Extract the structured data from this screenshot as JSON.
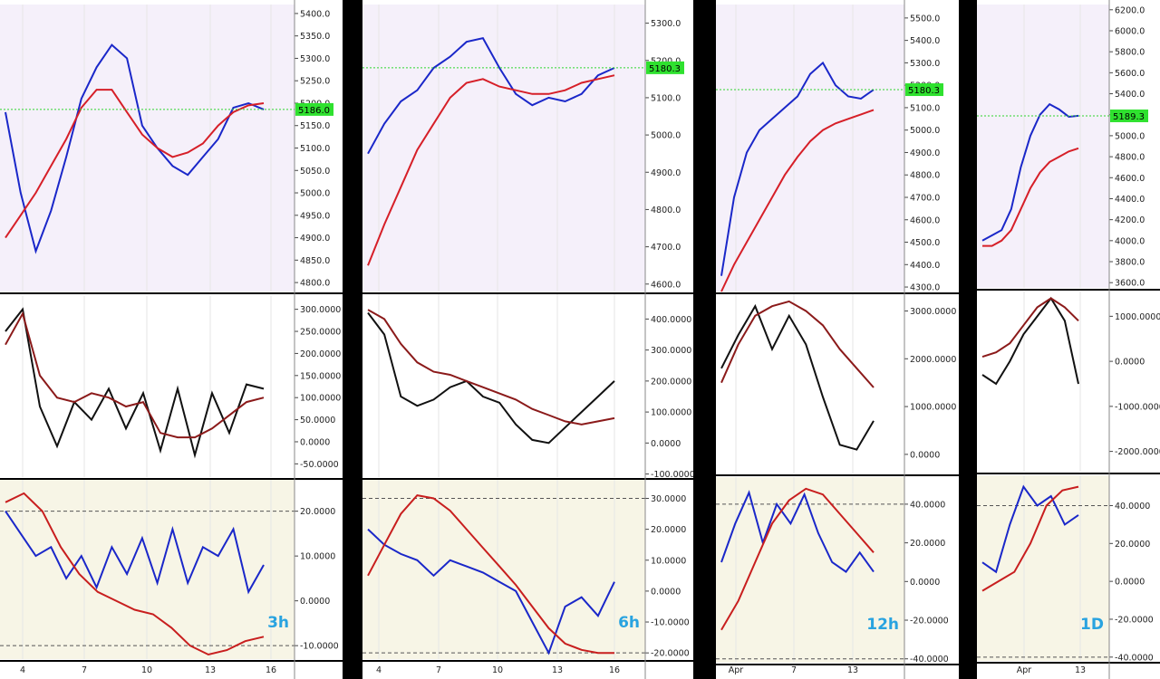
{
  "chart_data": [
    {
      "type": "line",
      "timeframe": "3h",
      "price_badge": "5186.0",
      "x_ticks": [
        "4",
        "7",
        "10",
        "13",
        "16"
      ],
      "panels": [
        {
          "name": "price",
          "ylim": [
            4780,
            5420
          ],
          "ticks": [
            "5400.0",
            "5350.0",
            "5300.0",
            "5250.0",
            "5200.0",
            "5150.0",
            "5100.0",
            "5050.0",
            "5000.0",
            "4950.0",
            "4900.0",
            "4850.0",
            "4800.0"
          ],
          "series": [
            {
              "values": [
                5180,
                5000,
                4870,
                4960,
                5080,
                5210,
                5280,
                5330,
                5300,
                5150,
                5100,
                5060,
                5040,
                5080,
                5120,
                5190,
                5200,
                5186
              ]
            },
            {
              "values": [
                4900,
                4950,
                5000,
                5060,
                5120,
                5190,
                5230,
                5230,
                5180,
                5130,
                5100,
                5080,
                5090,
                5110,
                5150,
                5180,
                5195,
                5200
              ]
            }
          ]
        },
        {
          "name": "oscillator",
          "ylim": [
            -80,
            330
          ],
          "ticks": [
            "300.0000",
            "250.0000",
            "200.0000",
            "150.0000",
            "100.0000",
            "50.0000",
            "0.0000",
            "-50.0000"
          ],
          "series": [
            {
              "values": [
                250,
                300,
                80,
                -10,
                90,
                50,
                120,
                30,
                110,
                -20,
                120,
                -30,
                110,
                20,
                130,
                120
              ]
            },
            {
              "values": [
                220,
                290,
                150,
                100,
                90,
                110,
                100,
                80,
                90,
                20,
                10,
                10,
                30,
                60,
                90,
                100
              ]
            }
          ]
        },
        {
          "name": "momentum",
          "ylim": [
            -13,
            27
          ],
          "ticks": [
            "20.0000",
            "10.0000",
            "0.0000",
            "-10.0000"
          ],
          "series": [
            {
              "values": [
                20,
                15,
                10,
                12,
                5,
                10,
                3,
                12,
                6,
                14,
                4,
                16,
                4,
                12,
                10,
                16,
                2,
                8
              ]
            },
            {
              "values": [
                22,
                24,
                20,
                12,
                6,
                2,
                0,
                -2,
                -3,
                -6,
                -10,
                -12,
                -11,
                -9,
                -8
              ]
            }
          ]
        }
      ]
    },
    {
      "type": "line",
      "timeframe": "6h",
      "price_badge": "5180.3",
      "x_ticks": [
        "4",
        "7",
        "10",
        "13",
        "16"
      ],
      "panels": [
        {
          "name": "price",
          "ylim": [
            4580,
            5350
          ],
          "ticks": [
            "5300.0",
            "5200.0",
            "5100.0",
            "5000.0",
            "4900.0",
            "4800.0",
            "4700.0",
            "4600.0"
          ],
          "series": [
            {
              "values": [
                4950,
                5030,
                5090,
                5120,
                5180,
                5210,
                5250,
                5260,
                5180,
                5110,
                5080,
                5100,
                5090,
                5110,
                5160,
                5180
              ]
            },
            {
              "values": [
                4650,
                4760,
                4860,
                4960,
                5030,
                5100,
                5140,
                5150,
                5130,
                5120,
                5110,
                5110,
                5120,
                5140,
                5150,
                5160
              ]
            }
          ]
        },
        {
          "name": "oscillator",
          "ylim": [
            -110,
            480
          ],
          "ticks": [
            "400.0000",
            "300.0000",
            "200.0000",
            "100.0000",
            "0.0000",
            "-100.0000"
          ],
          "series": [
            {
              "values": [
                420,
                350,
                150,
                120,
                140,
                180,
                200,
                150,
                130,
                60,
                10,
                0,
                50,
                100,
                150,
                200
              ]
            },
            {
              "values": [
                430,
                400,
                320,
                260,
                230,
                220,
                200,
                180,
                160,
                140,
                110,
                90,
                70,
                60,
                70,
                80
              ]
            }
          ]
        },
        {
          "name": "momentum",
          "ylim": [
            -22,
            36
          ],
          "ticks": [
            "30.0000",
            "20.0000",
            "10.0000",
            "0.0000",
            "-10.0000",
            "-20.0000"
          ],
          "series": [
            {
              "values": [
                20,
                15,
                12,
                10,
                5,
                10,
                8,
                6,
                3,
                0,
                -10,
                -20,
                -5,
                -2,
                -8,
                3
              ]
            },
            {
              "values": [
                5,
                15,
                25,
                31,
                30,
                26,
                20,
                14,
                8,
                2,
                -5,
                -12,
                -17,
                -19,
                -20,
                -20
              ]
            }
          ]
        }
      ]
    },
    {
      "type": "line",
      "timeframe": "12h",
      "price_badge": "5180.3",
      "x_ticks": [
        "Apr",
        "7",
        "13"
      ],
      "panels": [
        {
          "name": "price",
          "ylim": [
            4280,
            5560
          ],
          "ticks": [
            "5500.0",
            "5400.0",
            "5300.0",
            "5200.0",
            "5100.0",
            "5000.0",
            "4900.0",
            "4800.0",
            "4700.0",
            "4600.0",
            "4500.0",
            "4400.0",
            "4300.0"
          ],
          "series": [
            {
              "values": [
                4350,
                4700,
                4900,
                5000,
                5050,
                5100,
                5150,
                5250,
                5300,
                5200,
                5150,
                5140,
                5180
              ]
            },
            {
              "values": [
                4280,
                4400,
                4500,
                4600,
                4700,
                4800,
                4880,
                4950,
                5000,
                5030,
                5050,
                5070,
                5090
              ]
            }
          ]
        },
        {
          "name": "oscillator",
          "ylim": [
            -400,
            3350
          ],
          "ticks": [
            "3000.0000",
            "2000.0000",
            "1000.0000",
            "0.0000"
          ],
          "series": [
            {
              "values": [
                1800,
                2500,
                3100,
                2200,
                2900,
                2300,
                1200,
                200,
                100,
                700
              ]
            },
            {
              "values": [
                1500,
                2300,
                2900,
                3100,
                3200,
                3000,
                2700,
                2200,
                1800,
                1400
              ]
            }
          ]
        },
        {
          "name": "momentum",
          "ylim": [
            -42,
            54
          ],
          "ticks": [
            "40.0000",
            "20.0000",
            "0.0000",
            "-20.0000",
            "-40.0000"
          ],
          "series": [
            {
              "values": [
                10,
                30,
                46,
                20,
                40,
                30,
                45,
                25,
                10,
                5,
                15,
                5
              ]
            },
            {
              "values": [
                -25,
                -10,
                10,
                30,
                42,
                48,
                45,
                35,
                25,
                15
              ]
            }
          ]
        }
      ]
    },
    {
      "type": "line",
      "timeframe": "1D",
      "price_badge": "5189.3",
      "x_ticks": [
        "Apr",
        "13"
      ],
      "panels": [
        {
          "name": "price",
          "ylim": [
            3550,
            6250
          ],
          "ticks": [
            "6200.0",
            "6000.0",
            "5800.0",
            "5600.0",
            "5400.0",
            "5200.0",
            "5000.0",
            "4800.0",
            "4600.0",
            "4400.0",
            "4200.0",
            "4000.0",
            "3800.0",
            "3600.0"
          ],
          "series": [
            {
              "values": [
                4000,
                4050,
                4100,
                4300,
                4700,
                5000,
                5200,
                5300,
                5250,
                5180,
                5190
              ]
            },
            {
              "values": [
                3950,
                3950,
                4000,
                4100,
                4300,
                4500,
                4650,
                4750,
                4800,
                4850,
                4880
              ]
            }
          ]
        },
        {
          "name": "oscillator",
          "ylim": [
            -2450,
            1550
          ],
          "ticks": [
            "1000.0000",
            "0.0000",
            "-1000.0000",
            "-2000.0000"
          ],
          "series": [
            {
              "values": [
                -300,
                -500,
                0,
                600,
                1000,
                1400,
                900,
                -500
              ]
            },
            {
              "values": [
                100,
                200,
                400,
                800,
                1200,
                1400,
                1200,
                900
              ]
            }
          ]
        },
        {
          "name": "momentum",
          "ylim": [
            -42,
            56
          ],
          "ticks": [
            "40.0000",
            "20.0000",
            "0.0000",
            "-20.0000",
            "-40.0000"
          ],
          "series": [
            {
              "values": [
                10,
                5,
                30,
                50,
                40,
                45,
                30,
                35
              ]
            },
            {
              "values": [
                -5,
                0,
                5,
                20,
                40,
                48,
                50
              ]
            }
          ]
        }
      ]
    }
  ]
}
